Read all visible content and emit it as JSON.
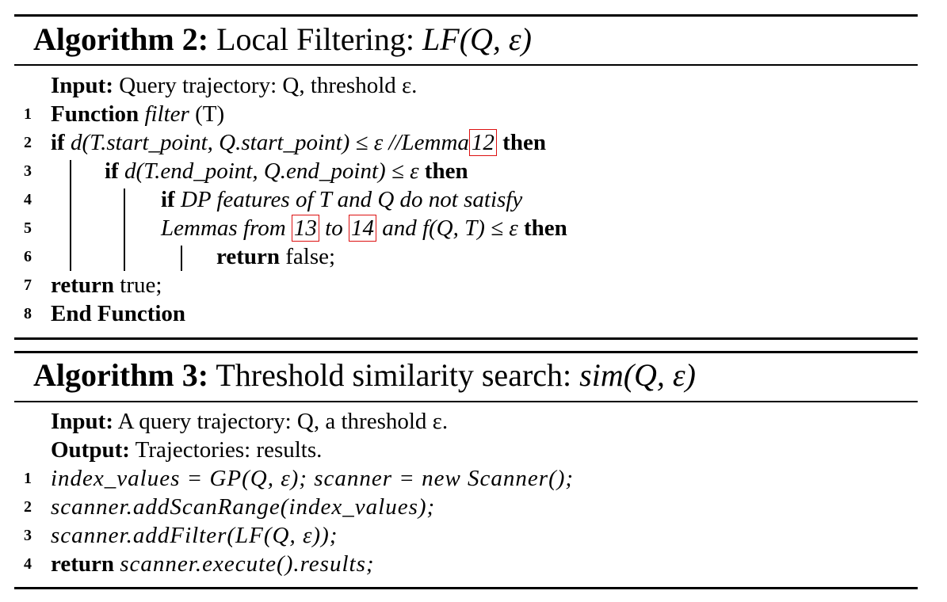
{
  "algorithm2": {
    "title_bold": "Algorithm 2:",
    "title_text": "Local Filtering:",
    "title_math": "LF(Q, ε)",
    "input_label": "Input:",
    "input_text": "Query trajectory: Q, threshold ε.",
    "lines": [
      {
        "num": "1",
        "kw": "Function",
        "rest1": "filter",
        "rest2": "(T)"
      },
      {
        "num": "2",
        "kw": "if",
        "math": "d(T.start_point, Q.start_point) ≤ ε",
        "comment": "//Lemma",
        "ref": "12",
        "kw2": "then"
      },
      {
        "num": "3",
        "kw": "if",
        "math": "d(T.end_point, Q.end_point) ≤ ε",
        "kw2": "then"
      },
      {
        "num": "4",
        "kw": "if",
        "text": "DP features of T and Q do not satisfy"
      },
      {
        "num": "5",
        "text1": "Lemmas from",
        "ref1": "13",
        "text2": "to",
        "ref2": "14",
        "text3": "and",
        "math": "f(Q, T) ≤ ε",
        "kw2": "then"
      },
      {
        "num": "6",
        "kw": "return",
        "rest": "false;"
      },
      {
        "num": "7",
        "kw": "return",
        "rest": "true;"
      },
      {
        "num": "8",
        "kw": "End Function"
      }
    ]
  },
  "algorithm3": {
    "title_bold": "Algorithm 3:",
    "title_text": "Threshold similarity search:",
    "title_math": "sim(Q, ε)",
    "input_label": "Input:",
    "input_text": "A query trajectory: Q, a threshold ε.",
    "output_label": "Output:",
    "output_text": "Trajectories: results.",
    "lines": [
      {
        "num": "1",
        "text": "index_values = GP(Q, ε); scanner = new Scanner();"
      },
      {
        "num": "2",
        "text": "scanner.addScanRange(index_values);"
      },
      {
        "num": "3",
        "text": "scanner.addFilter(LF(Q, ε));"
      },
      {
        "num": "4",
        "kw": "return",
        "text": "scanner.execute().results;"
      }
    ]
  }
}
